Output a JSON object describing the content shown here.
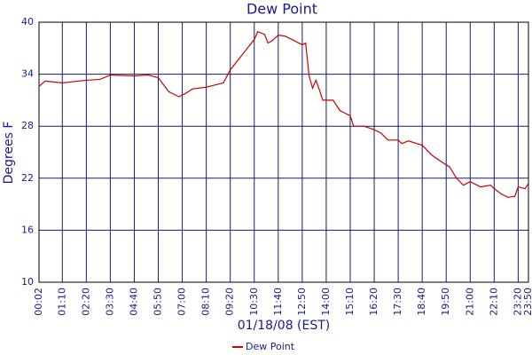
{
  "chart_data": {
    "type": "line",
    "title": "Dew Point",
    "x_label": "01/18/08 (EST)",
    "y_label": "Degrees F",
    "x": [
      "00:02",
      "00:20",
      "01:10",
      "02:20",
      "03:00",
      "03:30",
      "04:40",
      "05:20",
      "05:50",
      "06:20",
      "06:50",
      "07:10",
      "07:30",
      "08:10",
      "08:40",
      "09:00",
      "09:20",
      "09:50",
      "10:10",
      "10:30",
      "10:40",
      "11:00",
      "11:10",
      "11:20",
      "11:40",
      "12:00",
      "12:20",
      "12:50",
      "13:00",
      "13:10",
      "13:20",
      "13:30",
      "13:40",
      "13:50",
      "14:20",
      "14:40",
      "15:10",
      "15:20",
      "15:50",
      "16:20",
      "16:40",
      "17:00",
      "17:30",
      "17:40",
      "18:00",
      "18:40",
      "19:10",
      "19:40",
      "20:00",
      "20:20",
      "20:40",
      "21:00",
      "21:30",
      "22:00",
      "22:10",
      "22:30",
      "22:50",
      "23:10",
      "23:20",
      "23:40",
      "23:50"
    ],
    "series": [
      {
        "name": "Dew Point",
        "color": "#cc0000",
        "values": [
          32.6,
          33.2,
          33.0,
          33.3,
          33.4,
          33.9,
          33.8,
          33.9,
          33.6,
          32.0,
          31.4,
          31.8,
          32.3,
          32.5,
          32.8,
          33.0,
          34.5,
          36.0,
          37.0,
          38.0,
          38.9,
          38.6,
          37.6,
          37.8,
          38.5,
          38.4,
          38.0,
          37.4,
          37.6,
          33.8,
          32.4,
          33.3,
          32.2,
          31.0,
          31.0,
          29.8,
          29.2,
          28.0,
          28.0,
          27.6,
          27.2,
          26.4,
          26.4,
          26.0,
          26.3,
          25.8,
          24.6,
          23.8,
          23.3,
          22.0,
          21.2,
          21.6,
          21.0,
          21.2,
          20.8,
          20.2,
          19.8,
          19.9,
          21.0,
          20.8,
          21.4
        ]
      }
    ],
    "xlim": [
      "00:02",
      "23:50"
    ],
    "xticks": [
      "00:02",
      "01:10",
      "02:20",
      "03:30",
      "04:40",
      "05:50",
      "07:00",
      "08:10",
      "09:20",
      "10:30",
      "11:40",
      "12:50",
      "14:00",
      "15:10",
      "16:20",
      "17:30",
      "18:40",
      "19:50",
      "21:00",
      "22:10",
      "23:20",
      "23:50"
    ],
    "ylim": [
      10,
      40
    ],
    "yticks": [
      10,
      16,
      22,
      28,
      34,
      40
    ],
    "grid": true
  }
}
